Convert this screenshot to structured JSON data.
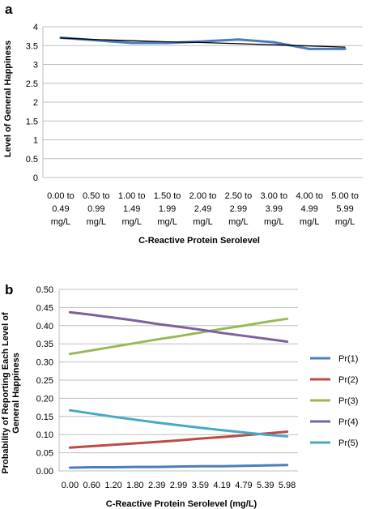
{
  "chart_data": [
    {
      "panel": "a",
      "type": "line",
      "categories": [
        [
          "0.00 to",
          "0.49",
          "mg/L"
        ],
        [
          "0.50 to",
          "0.99",
          "mg/L"
        ],
        [
          "1.00 to",
          "1.49",
          "mg/L"
        ],
        [
          "1.50 to",
          "1.99",
          "mg/L"
        ],
        [
          "2.00 to",
          "2.49",
          "mg/L"
        ],
        [
          "2.50 to",
          "2.99",
          "mg/L"
        ],
        [
          "3.00 to",
          "3.99",
          "mg/L"
        ],
        [
          "4.00 to",
          "4.99",
          "mg/L"
        ],
        [
          "5.00 to",
          "5.99",
          "mg/L"
        ]
      ],
      "series": [
        {
          "values": [
            3.71,
            3.64,
            3.57,
            3.57,
            3.61,
            3.66,
            3.59,
            3.41,
            3.41
          ],
          "color": "#4a7ebb"
        },
        {
          "values": [
            3.7,
            3.66,
            3.63,
            3.6,
            3.58,
            3.55,
            3.52,
            3.49,
            3.46
          ],
          "color": "#000000"
        }
      ],
      "xlabel": "C-Reactive Protein Serolevel",
      "ylabel": "Level of General Happiness",
      "ylim": [
        0,
        4
      ],
      "yticks": [
        "0",
        "0.5",
        "1",
        "1.5",
        "2",
        "2.5",
        "3",
        "3.5",
        "4"
      ],
      "grid": true
    },
    {
      "panel": "b",
      "type": "line",
      "categories": [
        "0.00",
        "0.60",
        "1.20",
        "1.80",
        "2.39",
        "2.99",
        "3.59",
        "4.19",
        "4.79",
        "5.39",
        "5.98"
      ],
      "series": [
        {
          "name": "Pr(1)",
          "color": "#4a7ebb",
          "values": [
            0.009,
            0.01,
            0.01,
            0.011,
            0.011,
            0.012,
            0.013,
            0.013,
            0.014,
            0.015,
            0.016
          ]
        },
        {
          "name": "Pr(2)",
          "color": "#be4b48",
          "values": [
            0.064,
            0.068,
            0.072,
            0.076,
            0.08,
            0.084,
            0.089,
            0.093,
            0.098,
            0.103,
            0.108
          ]
        },
        {
          "name": "Pr(3)",
          "color": "#98b954",
          "values": [
            0.322,
            0.332,
            0.342,
            0.352,
            0.362,
            0.371,
            0.381,
            0.391,
            0.4,
            0.41,
            0.419
          ]
        },
        {
          "name": "Pr(4)",
          "color": "#7d60a0",
          "values": [
            0.437,
            0.43,
            0.422,
            0.414,
            0.405,
            0.397,
            0.389,
            0.38,
            0.372,
            0.364,
            0.356
          ]
        },
        {
          "name": "Pr(5)",
          "color": "#46aac5",
          "values": [
            0.167,
            0.158,
            0.149,
            0.141,
            0.133,
            0.126,
            0.119,
            0.112,
            0.106,
            0.1,
            0.095
          ]
        }
      ],
      "xlabel": "C-Reactive Protein Serolevel (mg/L)",
      "ylabel": [
        "Probability of Reporting Each Level of",
        "General Happiness"
      ],
      "ylim": [
        0,
        0.5
      ],
      "yticks": [
        "0.00",
        "0.05",
        "0.10",
        "0.15",
        "0.20",
        "0.25",
        "0.30",
        "0.35",
        "0.40",
        "0.45",
        "0.50"
      ],
      "legend": "right",
      "grid": true
    }
  ]
}
